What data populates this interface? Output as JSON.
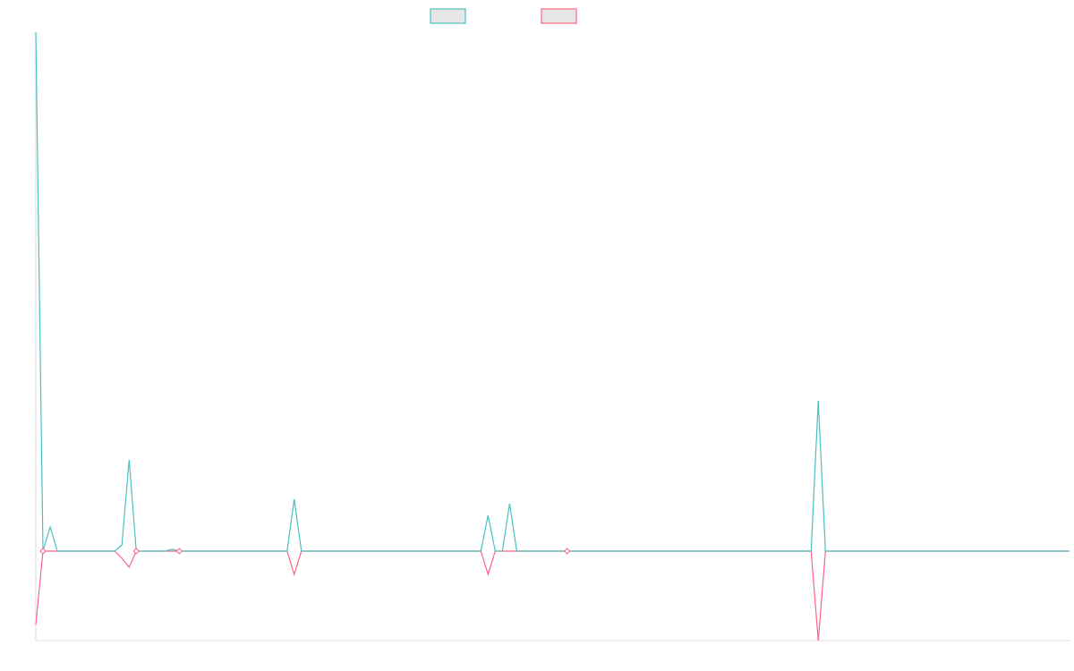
{
  "chart_data": {
    "type": "line",
    "title": "",
    "xlabel": "",
    "ylabel": "",
    "grid": false,
    "legend_position": "top-center",
    "x": [
      0,
      1,
      2,
      3,
      4,
      5,
      6,
      7,
      8,
      9,
      10,
      11,
      12,
      13,
      14,
      15,
      16,
      17,
      18,
      19,
      20,
      21,
      22,
      23,
      24,
      25,
      26,
      27,
      28,
      29,
      30,
      31,
      32,
      33,
      34,
      35,
      36,
      37,
      38,
      39,
      40,
      41,
      42,
      43,
      44,
      45,
      46,
      47,
      48,
      49,
      50,
      51,
      52,
      53,
      54,
      55,
      56,
      57,
      58,
      59,
      60,
      61,
      62,
      63,
      64,
      65,
      66,
      67,
      68,
      69,
      70,
      71,
      72,
      73,
      74,
      75,
      76,
      77,
      78,
      79,
      80,
      81,
      82,
      83,
      84,
      85,
      86,
      87,
      88,
      89,
      90,
      91,
      92,
      93,
      94,
      95,
      96,
      97,
      98,
      99,
      100,
      101,
      102,
      103,
      104,
      105,
      106,
      107,
      108,
      109,
      110,
      111,
      112,
      113,
      114,
      115,
      116,
      117,
      118,
      119,
      120,
      121,
      122,
      123,
      124,
      125,
      126,
      127,
      128,
      129,
      130,
      131,
      132,
      133,
      134,
      135,
      136,
      137,
      138,
      139,
      140,
      141,
      142,
      143,
      144
    ],
    "ylim": [
      -100,
      580
    ],
    "series": [
      {
        "name": "",
        "color": "#4bc0c0",
        "values": [
          580,
          0,
          27,
          0,
          0,
          0,
          0,
          0,
          0,
          0,
          0,
          0,
          7,
          102,
          0,
          0,
          0,
          0,
          0,
          2,
          0,
          0,
          0,
          0,
          0,
          0,
          0,
          0,
          0,
          0,
          0,
          0,
          0,
          0,
          0,
          0,
          58,
          0,
          0,
          0,
          0,
          0,
          0,
          0,
          0,
          0,
          0,
          0,
          0,
          0,
          0,
          0,
          0,
          0,
          0,
          0,
          0,
          0,
          0,
          0,
          0,
          0,
          0,
          40,
          0,
          0,
          53,
          0,
          0,
          0,
          0,
          0,
          0,
          0,
          0,
          0,
          0,
          0,
          0,
          0,
          0,
          0,
          0,
          0,
          0,
          0,
          0,
          0,
          0,
          0,
          0,
          0,
          0,
          0,
          0,
          0,
          0,
          0,
          0,
          0,
          0,
          0,
          0,
          0,
          0,
          0,
          0,
          0,
          0,
          168,
          0,
          0,
          0,
          0,
          0,
          0,
          0,
          0,
          0,
          0,
          0,
          0,
          0,
          0,
          0,
          0,
          0,
          0,
          0,
          0,
          0,
          0,
          0,
          0,
          0,
          0,
          0,
          0,
          0,
          0,
          0,
          0,
          0,
          0,
          0
        ]
      },
      {
        "name": "",
        "color": "#ff6384",
        "values": [
          -82,
          0,
          0,
          0,
          0,
          0,
          0,
          0,
          0,
          0,
          0,
          0,
          -8,
          -18,
          0,
          0,
          0,
          0,
          0,
          0,
          0,
          0,
          0,
          0,
          0,
          0,
          0,
          0,
          0,
          0,
          0,
          0,
          0,
          0,
          0,
          0,
          -26,
          0,
          0,
          0,
          0,
          0,
          0,
          0,
          0,
          0,
          0,
          0,
          0,
          0,
          0,
          0,
          0,
          0,
          0,
          0,
          0,
          0,
          0,
          0,
          0,
          0,
          0,
          -26,
          0,
          0,
          0,
          0,
          0,
          0,
          0,
          0,
          0,
          0,
          0,
          0,
          0,
          0,
          0,
          0,
          0,
          0,
          0,
          0,
          0,
          0,
          0,
          0,
          0,
          0,
          0,
          0,
          0,
          0,
          0,
          0,
          0,
          0,
          0,
          0,
          0,
          0,
          0,
          0,
          0,
          0,
          0,
          0,
          0,
          -100,
          0,
          0,
          0,
          0,
          0,
          0,
          0,
          0,
          0,
          0,
          0,
          0,
          0,
          0,
          0,
          0,
          0,
          0,
          0,
          0,
          0,
          0,
          0,
          0,
          0,
          0,
          0,
          0,
          0,
          0,
          0,
          0,
          0,
          0,
          0
        ]
      }
    ],
    "point_markers": [
      {
        "x": 1,
        "y": 0
      },
      {
        "x": 14,
        "y": 0
      },
      {
        "x": 20,
        "y": 0
      },
      {
        "x": 74,
        "y": 0
      }
    ]
  }
}
